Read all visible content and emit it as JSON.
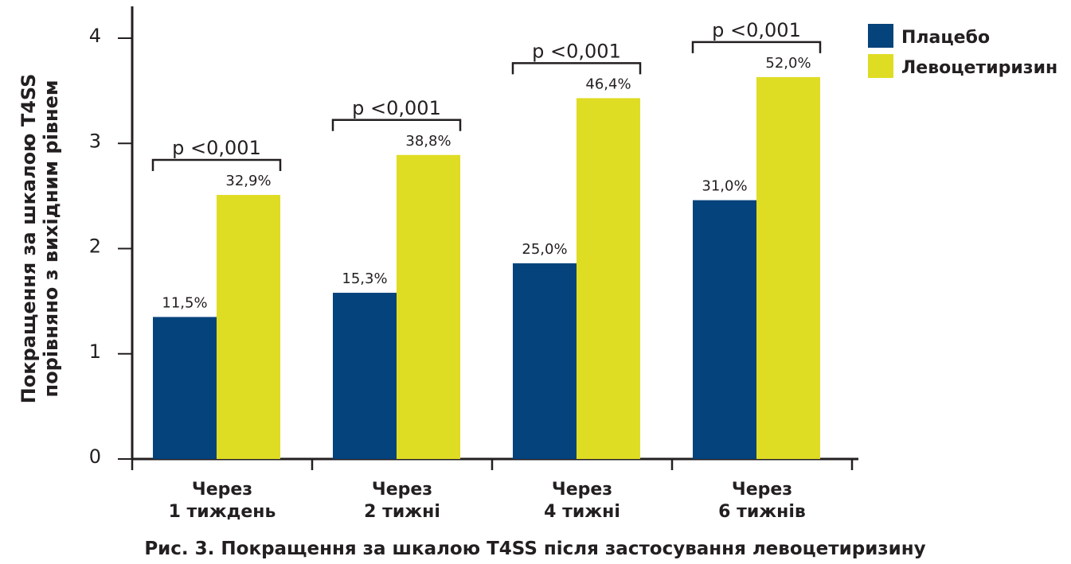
{
  "chart_data": {
    "type": "bar",
    "categories": [
      [
        "Через",
        "1 тиждень"
      ],
      [
        "Через",
        "2 тижні"
      ],
      [
        "Через",
        "4 тижні"
      ],
      [
        "Через",
        "6 тижнів"
      ]
    ],
    "series": [
      {
        "name": "Плацебо",
        "color": "#05437c",
        "values": [
          1.35,
          1.58,
          1.86,
          2.46
        ],
        "labels": [
          "11,5%",
          "15,3%",
          "25,0%",
          "31,0%"
        ]
      },
      {
        "name": "Левоцетиризин",
        "color": "#dfdc24",
        "values": [
          2.51,
          2.89,
          3.43,
          3.63
        ],
        "labels": [
          "32,9%",
          "38,8%",
          "46,4%",
          "52,0%"
        ]
      }
    ],
    "significance": [
      "p <0,001",
      "p <0,001",
      "p <0,001",
      "p <0,001"
    ],
    "ylabel": [
      "Покращення за шкалою T4SS",
      "порівняно з вихідним рівнем"
    ],
    "ylim": [
      0,
      4
    ],
    "yticks": [
      "0",
      "1",
      "2",
      "3",
      "4"
    ],
    "legend_position": "top-right",
    "caption": "Рис. 3. Покращення за шкалою T4SS після застосування левоцетиризину"
  }
}
